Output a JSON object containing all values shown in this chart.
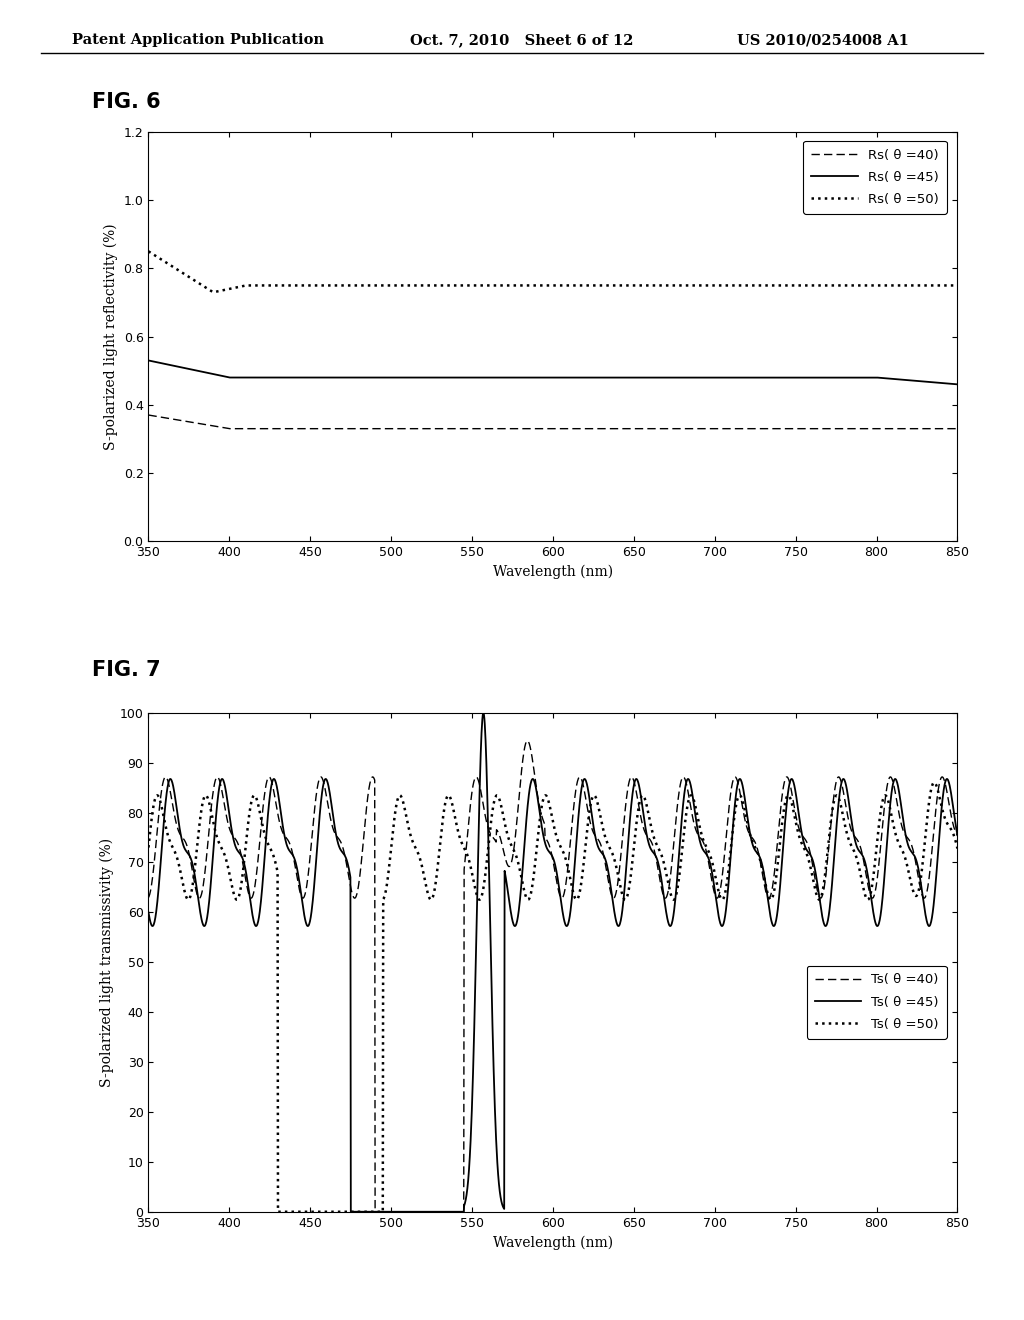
{
  "header_left": "Patent Application Publication",
  "header_center": "Oct. 7, 2010   Sheet 6 of 12",
  "header_right": "US 2010/0254008 A1",
  "fig6_title": "FIG. 6",
  "fig7_title": "FIG. 7",
  "fig6_ylabel": "S-polarized light reflectivity (%)",
  "fig7_ylabel": "S-polarized light transmissivity (%)",
  "xlabel": "Wavelength (nm)",
  "fig6_ylim": [
    0,
    1.2
  ],
  "fig6_yticks": [
    0,
    0.2,
    0.4,
    0.6,
    0.8,
    1.0,
    1.2
  ],
  "fig7_ylim": [
    0,
    100
  ],
  "fig7_yticks": [
    0,
    10,
    20,
    30,
    40,
    50,
    60,
    70,
    80,
    90,
    100
  ],
  "xlim": [
    350,
    850
  ],
  "xticks": [
    350,
    400,
    450,
    500,
    550,
    600,
    650,
    700,
    750,
    800,
    850
  ],
  "background_color": "#ffffff",
  "legend6": [
    "Rs( θ =40)",
    "Rs( θ =45)",
    "Rs( θ =50)"
  ],
  "legend7": [
    "Ts( θ =40)",
    "Ts( θ =45)",
    "Ts( θ =50)"
  ]
}
